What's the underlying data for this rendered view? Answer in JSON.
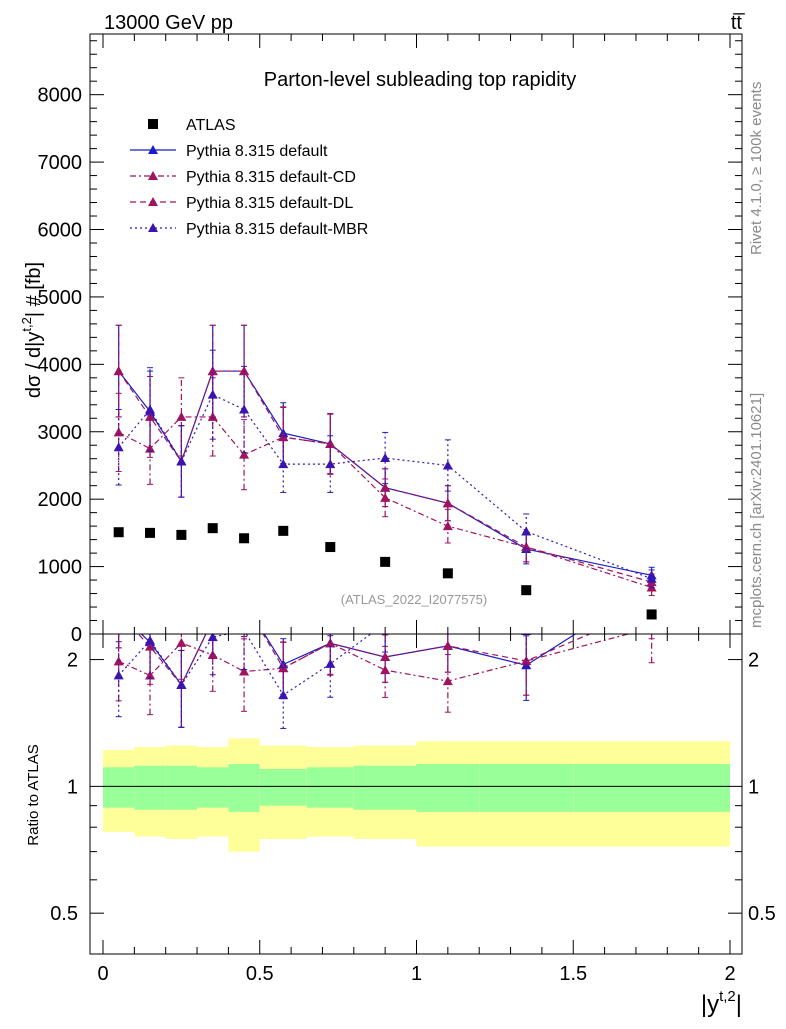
{
  "header": {
    "left": "13000 GeV pp",
    "right": "tt̅"
  },
  "side": {
    "rivet": "Rivet 4.1.0, ≥ 100k events",
    "mcplots": "mcplots.cern.ch [arXiv:2401.10621]"
  },
  "chart_data": {
    "type": "scatter",
    "title": "Parton-level subleading top rapidity",
    "watermark": "(ATLAS_2022_I2077575)",
    "xlabel": "|y^t,2|",
    "ylabel": "dσ / d|y^t,2| # [fb]",
    "ratio_ylabel": "Ratio to ATLAS",
    "xlim": [
      0,
      2
    ],
    "ylim": [
      0,
      8900
    ],
    "ratio_ylim": [
      0.4,
      2.3
    ],
    "x_ticks": [
      "0",
      "0.5",
      "1",
      "1.5",
      "2"
    ],
    "y_ticks": [
      "0",
      "1000",
      "2000",
      "3000",
      "4000",
      "5000",
      "6000",
      "7000",
      "8000"
    ],
    "ratio_ticks": [
      "0.5",
      "1",
      "2"
    ],
    "x": [
      0.05,
      0.15,
      0.25,
      0.35,
      0.45,
      0.575,
      0.725,
      0.9,
      1.1,
      1.35,
      1.75
    ],
    "bin_edges": [
      0,
      0.1,
      0.2,
      0.3,
      0.4,
      0.5,
      0.65,
      0.8,
      1.0,
      1.2,
      1.5,
      2.0
    ],
    "band_inner": [
      0.11,
      0.12,
      0.12,
      0.11,
      0.13,
      0.1,
      0.11,
      0.12,
      0.13,
      0.13,
      0.13
    ],
    "band_outer": [
      0.22,
      0.24,
      0.25,
      0.24,
      0.3,
      0.25,
      0.24,
      0.25,
      0.28,
      0.28,
      0.28
    ],
    "series": [
      {
        "name": "ATLAS",
        "style": "data",
        "color": "#000000",
        "values": [
          1510,
          1500,
          1470,
          1570,
          1420,
          1530,
          1290,
          1070,
          900,
          650,
          290
        ]
      },
      {
        "name": "Pythia 8.315 default",
        "style": "solid",
        "color": "#1b1bc8",
        "values": [
          3900,
          3300,
          2560,
          3900,
          3900,
          2980,
          2820,
          2170,
          1940,
          1260,
          870
        ],
        "errors": [
          680,
          600,
          530,
          680,
          680,
          450,
          450,
          280,
          260,
          220,
          120
        ]
      },
      {
        "name": "Pythia 8.315 default-CD",
        "style": "dashdot",
        "color": "#a0135e",
        "values": [
          2990,
          2750,
          3220,
          3220,
          2660,
          2920,
          2820,
          2020,
          1600,
          1290,
          690
        ],
        "errors": [
          580,
          530,
          580,
          580,
          520,
          440,
          440,
          280,
          250,
          220,
          120
        ]
      },
      {
        "name": "Pythia 8.315 default-DL",
        "style": "dashed",
        "color": "#a0135e",
        "values": [
          3900,
          3220,
          2560,
          3900,
          3900,
          2920,
          2820,
          2170,
          1940,
          1290,
          770
        ],
        "errors": [
          680,
          600,
          530,
          680,
          680,
          450,
          450,
          280,
          260,
          220,
          120
        ]
      },
      {
        "name": "Pythia 8.315 default-MBR",
        "style": "dotted",
        "color": "#3a14b0",
        "values": [
          2770,
          3330,
          2560,
          3550,
          3330,
          2520,
          2520,
          2610,
          2500,
          1520,
          820
        ],
        "errors": [
          560,
          620,
          530,
          660,
          640,
          420,
          420,
          380,
          380,
          260,
          130
        ]
      }
    ]
  }
}
